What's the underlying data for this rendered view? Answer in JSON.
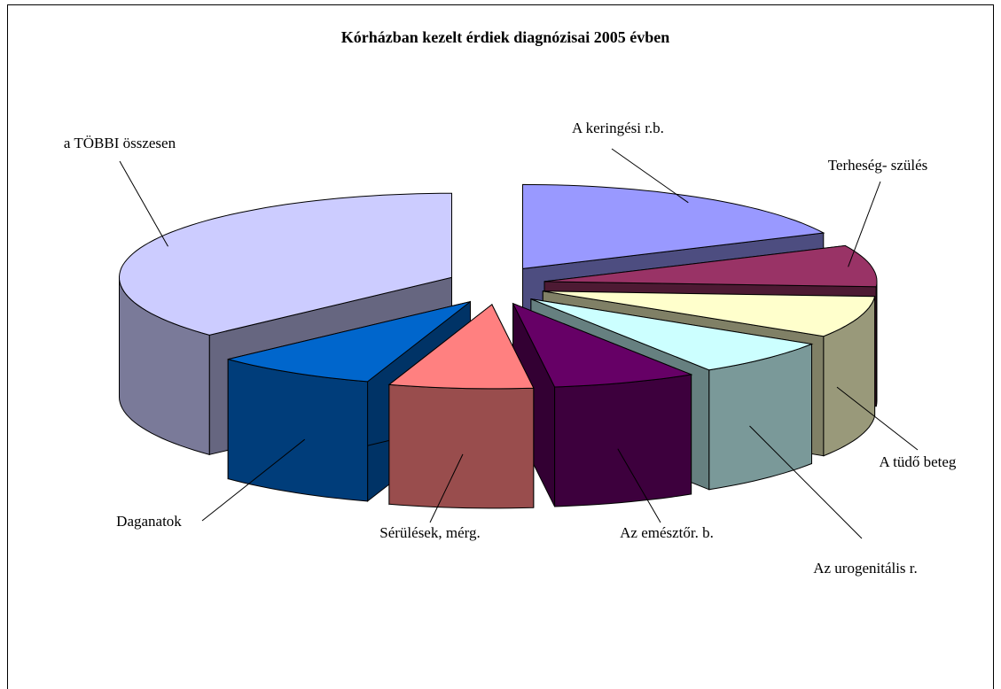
{
  "chart_data": {
    "type": "pie",
    "title": "Kórházban kezelt érdiek diagnózisai 2005 évben",
    "categories": [
      "A keringési r.b.",
      "Terheség- szülés",
      "A tüdő beteg",
      "Az urogenitális r.",
      "Az emésztőr. b.",
      "Sérülések, mérg.",
      "Daganatok",
      "a TÖBBI összesen"
    ],
    "values": [
      18,
      8,
      8,
      7,
      7,
      7,
      8,
      37
    ],
    "colors": [
      "#9999ff",
      "#993366",
      "#ffffcc",
      "#ccffff",
      "#660066",
      "#ff8080",
      "#0066cc",
      "#ccccff"
    ]
  }
}
